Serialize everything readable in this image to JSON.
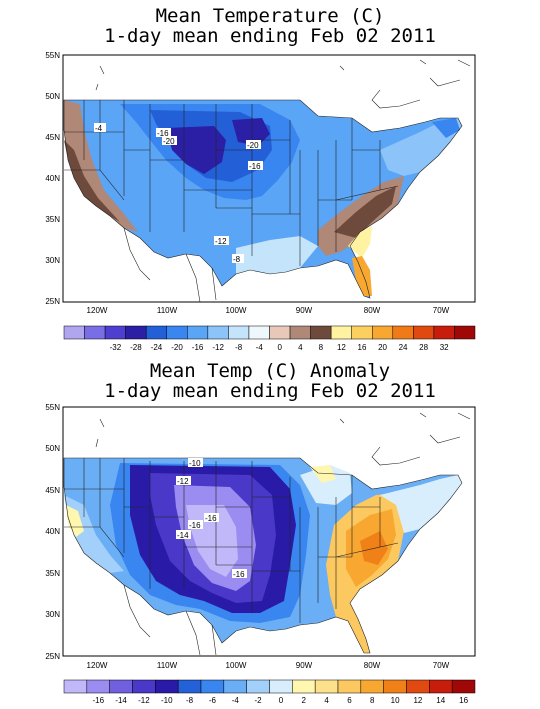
{
  "maps": [
    {
      "id": "mean-temperature",
      "title_line1": "Mean Temperature (C)",
      "title_line2": "1-day mean ending Feb 02 2011",
      "lat_ticks": [
        "55N",
        "50N",
        "45N",
        "40N",
        "35N",
        "30N",
        "25N"
      ],
      "lon_ticks": [
        "120W",
        "110W",
        "100W",
        "90W",
        "80W",
        "70W"
      ],
      "contour_labels": [
        "-4",
        "-16",
        "-20",
        "-20",
        "-16",
        "-12",
        "-8"
      ],
      "legend": {
        "labels": [
          "-32",
          "-28",
          "-24",
          "-20",
          "-16",
          "-12",
          "-8",
          "-4",
          "0",
          "4",
          "8",
          "12",
          "16",
          "20",
          "24",
          "28",
          "32"
        ],
        "colors": [
          "#b0a6f0",
          "#7a6ee6",
          "#4e3fd0",
          "#2b1fa6",
          "#2360d8",
          "#3a86f0",
          "#5aa5f5",
          "#8cc4fa",
          "#c4e4fc",
          "#eef8fc",
          "#e8c8b8",
          "#b08878",
          "#6e4a3c",
          "#fff2a0",
          "#fcd060",
          "#f8a830",
          "#f07a18",
          "#e04a10",
          "#c81c0c",
          "#a00808"
        ]
      }
    },
    {
      "id": "mean-temp-anomaly",
      "title_line1": "Mean Temp (C) Anomaly",
      "title_line2": "1-day mean ending Feb 02 2011",
      "lat_ticks": [
        "55N",
        "50N",
        "45N",
        "40N",
        "35N",
        "30N",
        "25N"
      ],
      "lon_ticks": [
        "120W",
        "110W",
        "100W",
        "90W",
        "80W",
        "70W"
      ],
      "contour_labels": [
        "-10",
        "-12",
        "-16",
        "-16",
        "-14",
        "-16"
      ],
      "legend": {
        "labels": [
          "-16",
          "-14",
          "-12",
          "-10",
          "-8",
          "-6",
          "-4",
          "-2",
          "0",
          "2",
          "4",
          "6",
          "8",
          "10",
          "12",
          "14",
          "16"
        ],
        "colors": [
          "#c0b8f8",
          "#9a8cf0",
          "#7060e0",
          "#4a38c8",
          "#2a1aa8",
          "#2460d8",
          "#3a86f0",
          "#6aaef6",
          "#a2d0fa",
          "#d8eefc",
          "#fff6b0",
          "#fde08a",
          "#fcc860",
          "#f8a830",
          "#f08018",
          "#e04a10",
          "#c81c0c",
          "#a00808"
        ]
      }
    }
  ]
}
